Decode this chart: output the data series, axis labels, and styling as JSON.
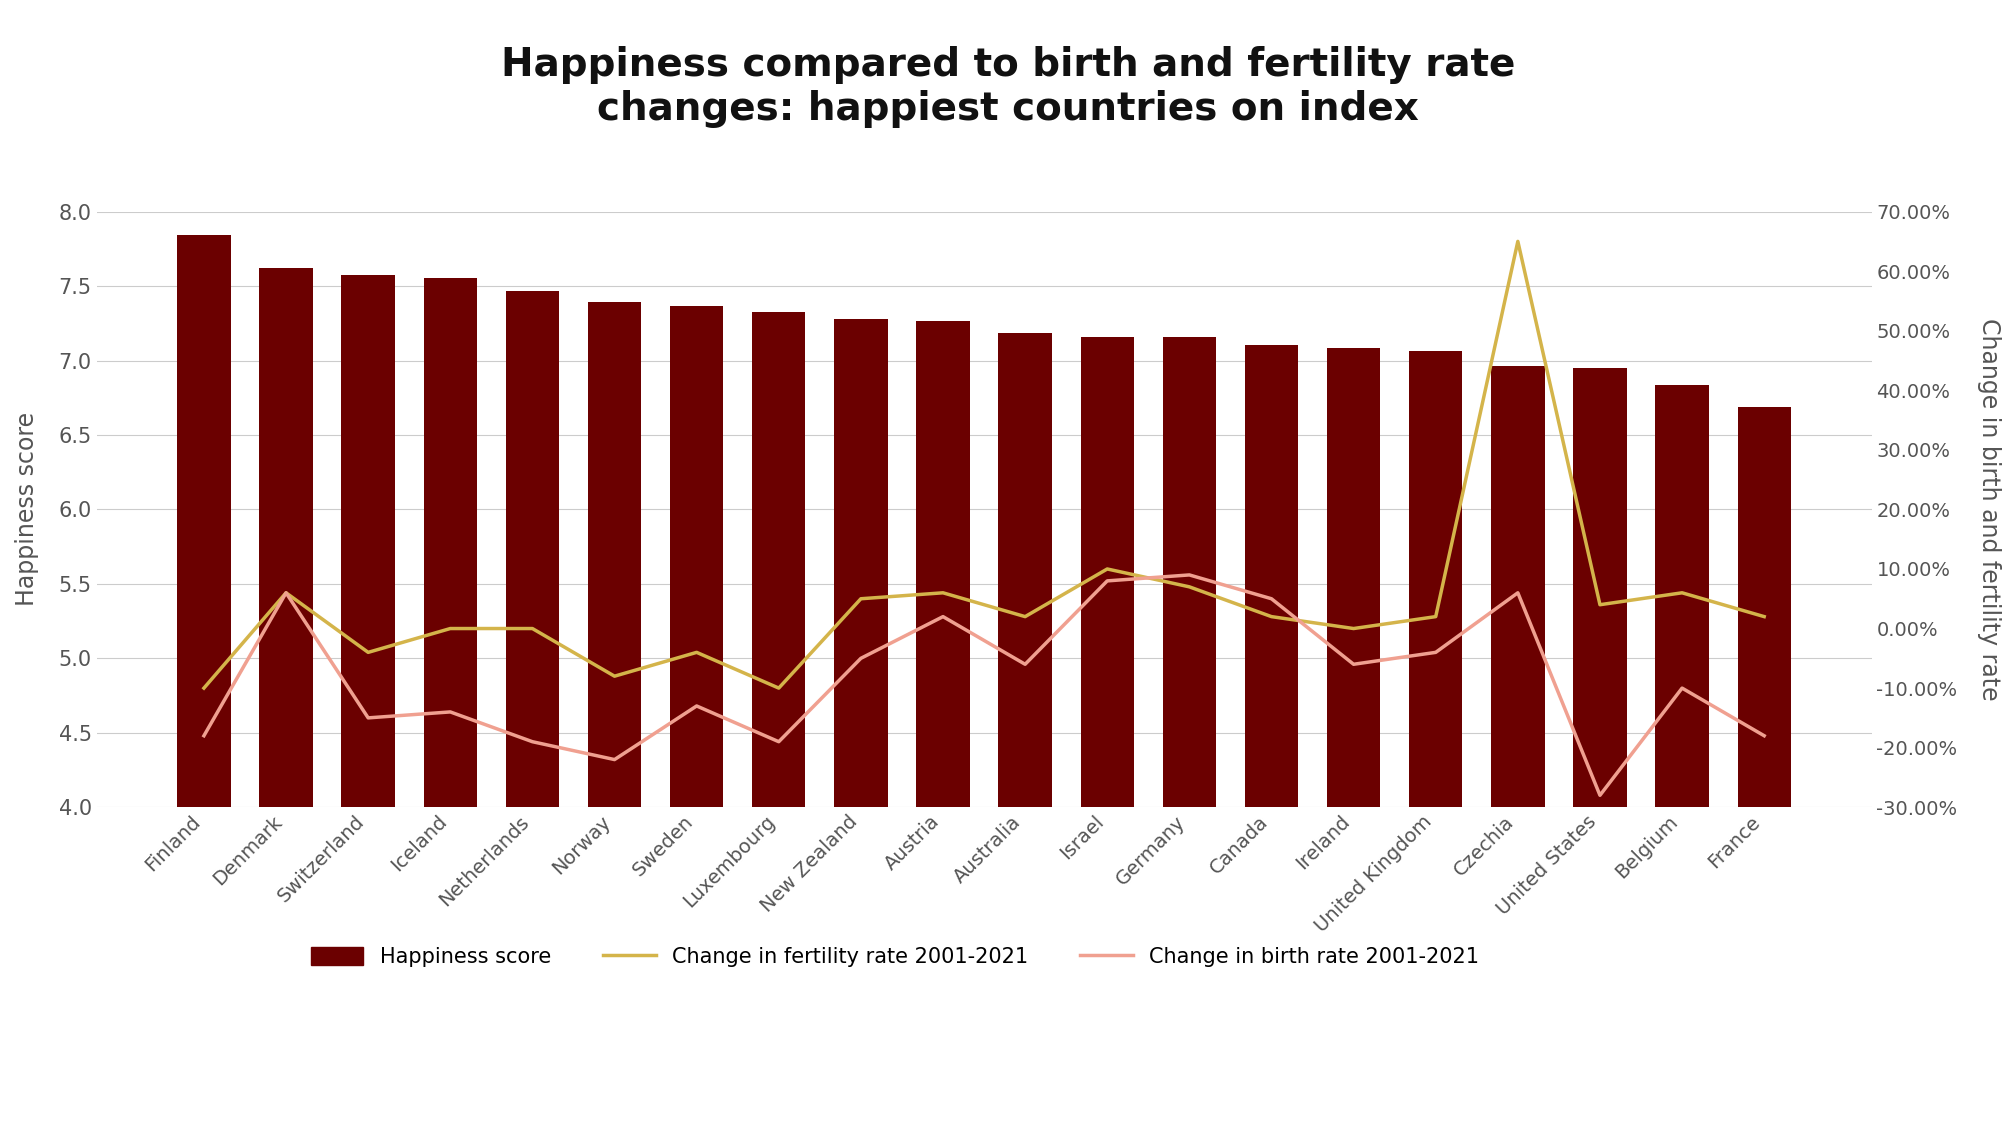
{
  "title": "Happiness compared to birth and fertility rate\nchanges: happiest countries on index",
  "countries": [
    "Finland",
    "Denmark",
    "Switzerland",
    "Iceland",
    "Netherlands",
    "Norway",
    "Sweden",
    "Luxembourg",
    "New Zealand",
    "Austria",
    "Australia",
    "Israel",
    "Germany",
    "Canada",
    "Ireland",
    "United Kingdom",
    "Czechia",
    "United States",
    "Belgium",
    "France"
  ],
  "happiness_scores": [
    7.842,
    7.62,
    7.571,
    7.554,
    7.464,
    7.392,
    7.363,
    7.324,
    7.277,
    7.268,
    7.183,
    7.157,
    7.155,
    7.103,
    7.085,
    7.064,
    6.965,
    6.951,
    6.834,
    6.69
  ],
  "fertility_change": [
    -0.1,
    0.06,
    -0.04,
    0.0,
    0.0,
    -0.08,
    -0.04,
    -0.1,
    0.05,
    0.06,
    0.02,
    0.1,
    0.07,
    0.02,
    0.0,
    0.02,
    0.65,
    0.04,
    0.06,
    0.02
  ],
  "birth_change": [
    -0.18,
    0.06,
    -0.15,
    -0.14,
    -0.19,
    -0.22,
    -0.13,
    -0.19,
    -0.05,
    0.02,
    -0.06,
    0.08,
    0.09,
    0.05,
    -0.06,
    -0.04,
    0.06,
    -0.28,
    -0.1,
    -0.18
  ],
  "bar_color": "#6B0000",
  "fertility_line_color": "#D4B44A",
  "birth_line_color": "#F0A090",
  "ylabel_left": "Happiness score",
  "ylabel_right": "Change in birth and fertility rate",
  "ylim_left": [
    4.0,
    8.0
  ],
  "ylim_right": [
    -0.3,
    0.7
  ],
  "yticks_left": [
    4.0,
    4.5,
    5.0,
    5.5,
    6.0,
    6.5,
    7.0,
    7.5,
    8.0
  ],
  "yticks_right": [
    -0.3,
    -0.2,
    -0.1,
    0.0,
    0.1,
    0.2,
    0.3,
    0.4,
    0.5,
    0.6,
    0.7
  ],
  "legend_labels": [
    "Happiness score",
    "Change in fertility rate 2001-2021",
    "Change in birth rate 2001-2021"
  ],
  "background_color": "#FFFFFF"
}
